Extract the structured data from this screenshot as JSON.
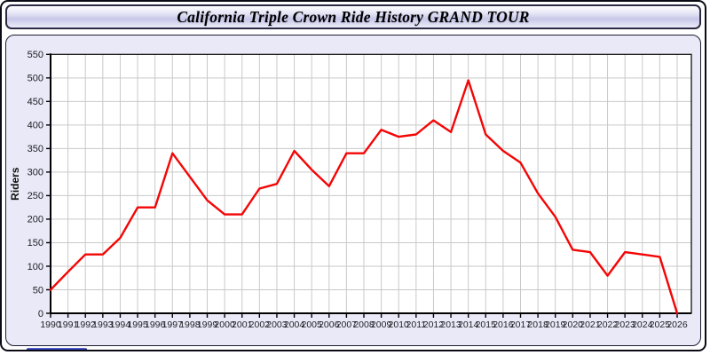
{
  "window": {
    "title": "California Triple Crown Ride History GRAND TOUR"
  },
  "chart_data": {
    "type": "line",
    "title": "California Triple Crown Ride History GRAND TOUR",
    "xlabel": "",
    "ylabel": "Riders",
    "x": [
      1990,
      1991,
      1992,
      1993,
      1994,
      1995,
      1996,
      1997,
      1998,
      1999,
      2000,
      2001,
      2002,
      2003,
      2004,
      2005,
      2006,
      2007,
      2008,
      2009,
      2010,
      2011,
      2012,
      2013,
      2014,
      2015,
      2016,
      2017,
      2018,
      2019,
      2020,
      2021,
      2022,
      2023,
      2024,
      2025,
      2026
    ],
    "series": [
      {
        "name": "Riders",
        "color": "#f40505",
        "values": [
          50,
          88,
          125,
          125,
          160,
          225,
          225,
          340,
          290,
          240,
          210,
          210,
          265,
          275,
          345,
          305,
          270,
          340,
          340,
          390,
          375,
          380,
          410,
          385,
          495,
          380,
          345,
          320,
          255,
          205,
          135,
          130,
          80,
          130,
          125,
          120,
          0
        ]
      }
    ],
    "ylim": [
      0,
      550
    ],
    "ytick_step": 50,
    "grid": true,
    "legend": false,
    "grid_color": "#c9c9c9",
    "plot_bg": "#ffffff",
    "axis_color": "#000000",
    "tick_label_color": "#222228"
  }
}
